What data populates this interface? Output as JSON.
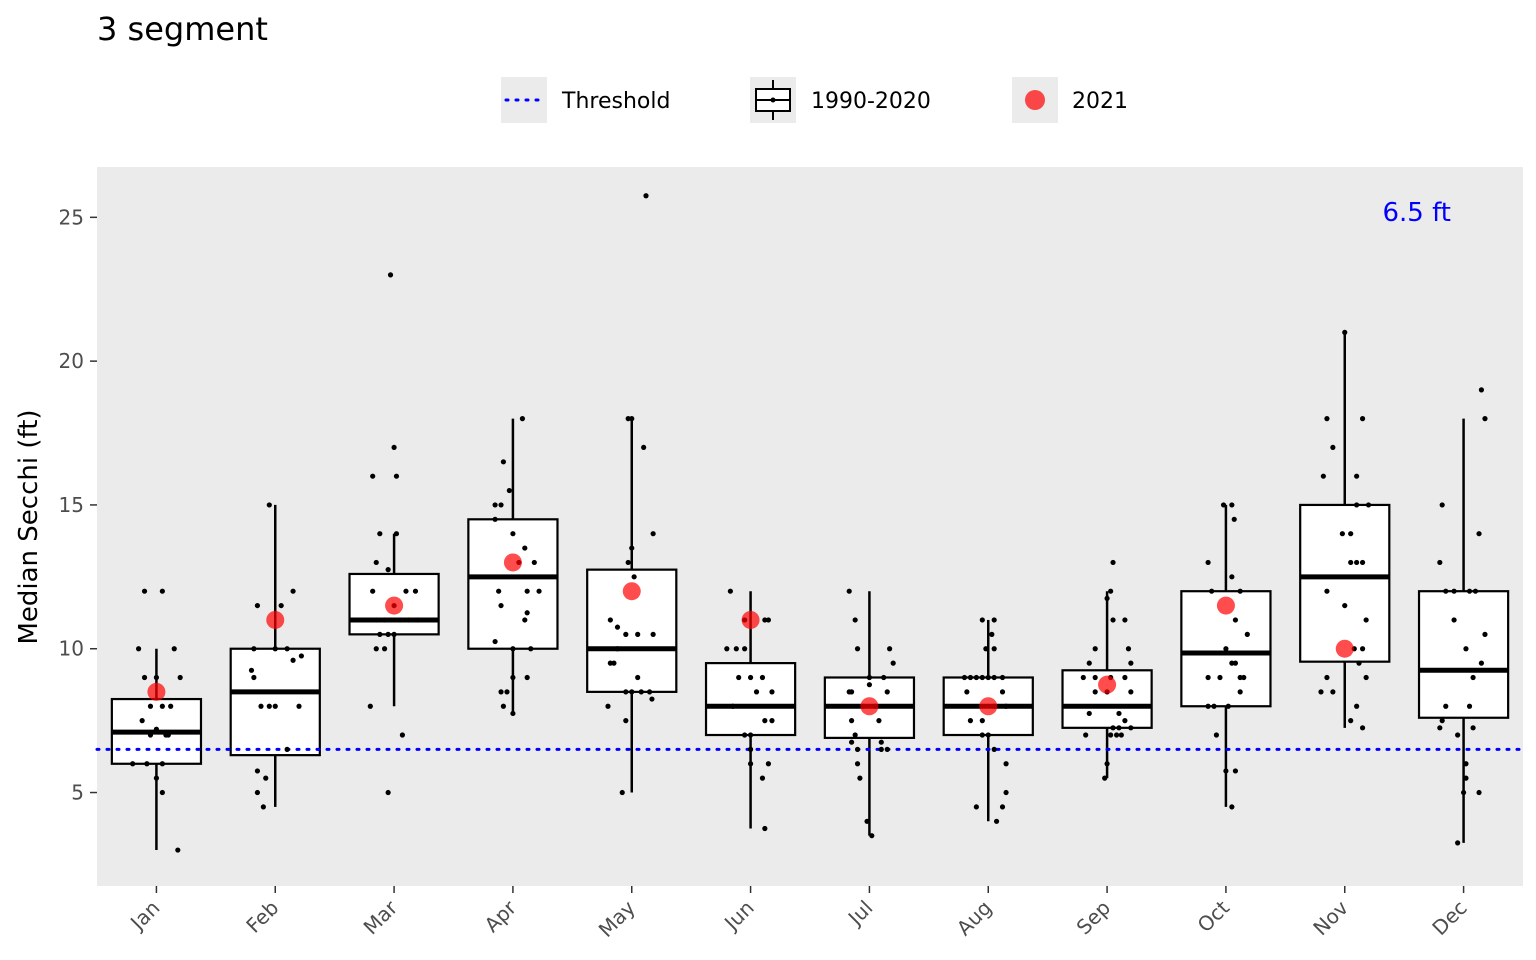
{
  "chart_data": {
    "type": "box",
    "title": "3 segment",
    "ylabel": "Median Secchi (ft)",
    "xlabel": "",
    "ylim": [
      1.75,
      26.75
    ],
    "yticks": [
      5,
      10,
      15,
      20,
      25
    ],
    "grid": false,
    "panel_background": "#ebebeb",
    "legend_position": "top",
    "legend": [
      {
        "key": "threshold",
        "label": "Threshold"
      },
      {
        "key": "box",
        "label": "1990-2020"
      },
      {
        "key": "current",
        "label": "2021"
      }
    ],
    "threshold": {
      "value": 6.5,
      "label": "6.5 ft",
      "color": "#0000ff"
    },
    "current_color": "#ff0000",
    "categories": [
      "Jan",
      "Feb",
      "Mar",
      "Apr",
      "May",
      "Jun",
      "Jul",
      "Aug",
      "Sep",
      "Oct",
      "Nov",
      "Dec"
    ],
    "boxes": [
      {
        "whisker_low": 3.0,
        "q1": 6.0,
        "median": 7.1,
        "q3": 8.25,
        "whisker_high": 10.0
      },
      {
        "whisker_low": 4.5,
        "q1": 6.3,
        "median": 8.5,
        "q3": 10.0,
        "whisker_high": 15.0
      },
      {
        "whisker_low": 8.0,
        "q1": 10.5,
        "median": 11.0,
        "q3": 12.6,
        "whisker_high": 14.0
      },
      {
        "whisker_low": 7.75,
        "q1": 10.0,
        "median": 12.5,
        "q3": 14.5,
        "whisker_high": 18.0
      },
      {
        "whisker_low": 5.0,
        "q1": 8.5,
        "median": 10.0,
        "q3": 12.75,
        "whisker_high": 18.0
      },
      {
        "whisker_low": 3.75,
        "q1": 7.0,
        "median": 8.0,
        "q3": 9.5,
        "whisker_high": 12.0
      },
      {
        "whisker_low": 3.5,
        "q1": 6.9,
        "median": 8.0,
        "q3": 9.0,
        "whisker_high": 12.0
      },
      {
        "whisker_low": 4.0,
        "q1": 7.0,
        "median": 8.0,
        "q3": 9.0,
        "whisker_high": 11.0
      },
      {
        "whisker_low": 5.5,
        "q1": 7.25,
        "median": 8.0,
        "q3": 9.25,
        "whisker_high": 12.0
      },
      {
        "whisker_low": 4.5,
        "q1": 8.0,
        "median": 9.85,
        "q3": 12.0,
        "whisker_high": 15.0
      },
      {
        "whisker_low": 7.25,
        "q1": 9.55,
        "median": 12.5,
        "q3": 15.0,
        "whisker_high": 21.0
      },
      {
        "whisker_low": 3.25,
        "q1": 7.6,
        "median": 9.25,
        "q3": 12.0,
        "whisker_high": 18.0
      }
    ],
    "current_values": [
      8.5,
      11.0,
      11.5,
      13.0,
      12.0,
      11.0,
      8.0,
      8.0,
      8.75,
      11.5,
      10.0,
      null
    ],
    "points": [
      [
        [
          -0.1,
          12
        ],
        [
          0.05,
          12
        ],
        [
          -0.15,
          10
        ],
        [
          0.15,
          10
        ],
        [
          -0.1,
          9
        ],
        [
          0,
          9
        ],
        [
          0.2,
          9
        ],
        [
          -0.05,
          8
        ],
        [
          0.05,
          8
        ],
        [
          0.12,
          8
        ],
        [
          -0.12,
          7.5
        ],
        [
          0,
          7.2
        ],
        [
          0.08,
          7
        ],
        [
          -0.05,
          7
        ],
        [
          0.1,
          7
        ],
        [
          -0.2,
          6
        ],
        [
          -0.08,
          6
        ],
        [
          0.05,
          6
        ],
        [
          0,
          5.5
        ],
        [
          0.05,
          5
        ],
        [
          0.18,
          3
        ]
      ],
      [
        [
          -0.05,
          15
        ],
        [
          0.15,
          12
        ],
        [
          -0.15,
          11.5
        ],
        [
          0.05,
          11.5
        ],
        [
          -0.18,
          10
        ],
        [
          0,
          10
        ],
        [
          0.1,
          10
        ],
        [
          0.22,
          9.75
        ],
        [
          0.15,
          9.6
        ],
        [
          -0.2,
          9.25
        ],
        [
          -0.18,
          9
        ],
        [
          -0.12,
          8
        ],
        [
          0,
          8
        ],
        [
          -0.05,
          8
        ],
        [
          0.2,
          8
        ],
        [
          0.1,
          6.5
        ],
        [
          -0.15,
          5.75
        ],
        [
          -0.08,
          5.5
        ],
        [
          -0.15,
          5
        ],
        [
          -0.1,
          4.5
        ]
      ],
      [
        [
          -0.03,
          23
        ],
        [
          0,
          17
        ],
        [
          -0.18,
          16
        ],
        [
          0.02,
          16
        ],
        [
          -0.15,
          13
        ],
        [
          -0.12,
          14
        ],
        [
          0.02,
          14
        ],
        [
          -0.05,
          12.75
        ],
        [
          -0.18,
          12
        ],
        [
          0.1,
          12
        ],
        [
          0.18,
          12
        ],
        [
          0,
          11.5
        ],
        [
          -0.15,
          11
        ],
        [
          -0.08,
          11
        ],
        [
          0.05,
          11
        ],
        [
          0.12,
          11
        ],
        [
          0.2,
          11
        ],
        [
          -0.12,
          10.5
        ],
        [
          -0.05,
          10.5
        ],
        [
          0,
          10.5
        ],
        [
          -0.15,
          10
        ],
        [
          -0.08,
          10
        ],
        [
          -0.2,
          8
        ],
        [
          0.07,
          7
        ],
        [
          -0.05,
          5
        ]
      ],
      [
        [
          0.08,
          18
        ],
        [
          -0.08,
          16.5
        ],
        [
          -0.03,
          15.5
        ],
        [
          -0.15,
          15
        ],
        [
          -0.1,
          15
        ],
        [
          -0.15,
          14.5
        ],
        [
          0,
          14
        ],
        [
          0.1,
          13.5
        ],
        [
          0.05,
          13
        ],
        [
          0.18,
          13
        ],
        [
          0.22,
          12
        ],
        [
          0.12,
          12
        ],
        [
          -0.12,
          12
        ],
        [
          0.12,
          11.25
        ],
        [
          -0.1,
          11.5
        ],
        [
          0.1,
          11
        ],
        [
          -0.15,
          10.25
        ],
        [
          0,
          10
        ],
        [
          0.15,
          10
        ],
        [
          -0.1,
          8.5
        ],
        [
          -0.05,
          8.5
        ],
        [
          0,
          9
        ],
        [
          0.12,
          9
        ],
        [
          -0.08,
          8
        ],
        [
          0,
          7.75
        ]
      ],
      [
        [
          0.12,
          25.75
        ],
        [
          0,
          18
        ],
        [
          -0.03,
          18
        ],
        [
          0.1,
          17
        ],
        [
          0.18,
          14
        ],
        [
          0,
          13.5
        ],
        [
          -0.03,
          13
        ],
        [
          0.02,
          12.5
        ],
        [
          -0.18,
          11
        ],
        [
          -0.12,
          10.75
        ],
        [
          -0.05,
          10.5
        ],
        [
          0.05,
          10.5
        ],
        [
          0.18,
          10.5
        ],
        [
          -0.18,
          9.5
        ],
        [
          -0.15,
          9.5
        ],
        [
          -0.12,
          10
        ],
        [
          0.05,
          9
        ],
        [
          -0.05,
          8.5
        ],
        [
          0,
          8.5
        ],
        [
          0.08,
          8.5
        ],
        [
          0.15,
          8.5
        ],
        [
          0.17,
          8.25
        ],
        [
          -0.2,
          8
        ],
        [
          -0.05,
          7.5
        ],
        [
          -0.08,
          5
        ]
      ],
      [
        [
          -0.17,
          12
        ],
        [
          0.15,
          11
        ],
        [
          -0.05,
          11
        ],
        [
          0.12,
          11
        ],
        [
          -0.2,
          10
        ],
        [
          -0.12,
          10
        ],
        [
          -0.05,
          10
        ],
        [
          -0.1,
          9
        ],
        [
          0,
          9
        ],
        [
          0.1,
          9
        ],
        [
          0.18,
          8.5
        ],
        [
          0.05,
          8.5
        ],
        [
          -0.15,
          8
        ],
        [
          0.12,
          7.5
        ],
        [
          0.18,
          7.5
        ],
        [
          -0.05,
          7
        ],
        [
          0,
          7
        ],
        [
          0,
          6.5
        ],
        [
          0,
          6
        ],
        [
          0.15,
          6
        ],
        [
          0.1,
          5.5
        ],
        [
          0.12,
          3.75
        ]
      ],
      [
        [
          -0.17,
          12
        ],
        [
          -0.12,
          11
        ],
        [
          -0.1,
          10
        ],
        [
          0.17,
          10
        ],
        [
          0.12,
          9
        ],
        [
          0.2,
          9.5
        ],
        [
          0,
          9
        ],
        [
          0,
          8.75
        ],
        [
          -0.17,
          8.5
        ],
        [
          -0.15,
          8.5
        ],
        [
          0.15,
          8.5
        ],
        [
          -0.05,
          8
        ],
        [
          0.05,
          8
        ],
        [
          -0.15,
          7.5
        ],
        [
          0.08,
          7.5
        ],
        [
          -0.12,
          7
        ],
        [
          0.1,
          6.75
        ],
        [
          -0.15,
          6.75
        ],
        [
          -0.1,
          6.5
        ],
        [
          0.1,
          6.5
        ],
        [
          0.15,
          6.5
        ],
        [
          -0.1,
          6
        ],
        [
          -0.08,
          5.5
        ],
        [
          -0.02,
          4
        ],
        [
          0.02,
          3.5
        ]
      ],
      [
        [
          -0.05,
          11
        ],
        [
          0.05,
          11
        ],
        [
          0.03,
          10.5
        ],
        [
          -0.02,
          10
        ],
        [
          0.05,
          10
        ],
        [
          -0.2,
          9
        ],
        [
          -0.15,
          9
        ],
        [
          -0.1,
          9
        ],
        [
          -0.05,
          9
        ],
        [
          0,
          9
        ],
        [
          0.05,
          9
        ],
        [
          0.12,
          9
        ],
        [
          -0.18,
          8.5
        ],
        [
          0.12,
          8.5
        ],
        [
          0.05,
          8
        ],
        [
          0.15,
          8
        ],
        [
          -0.05,
          7.5
        ],
        [
          -0.15,
          7.5
        ],
        [
          0,
          7
        ],
        [
          0.05,
          6.5
        ],
        [
          -0.05,
          7
        ],
        [
          0.15,
          6
        ],
        [
          -0.1,
          4.5
        ],
        [
          0.15,
          5
        ],
        [
          0.12,
          4.5
        ],
        [
          0.07,
          4
        ]
      ],
      [
        [
          0.05,
          13
        ],
        [
          0.03,
          12
        ],
        [
          0,
          11.75
        ],
        [
          -0.1,
          10
        ],
        [
          0.05,
          11
        ],
        [
          0.15,
          11
        ],
        [
          0.18,
          10
        ],
        [
          0.2,
          9.5
        ],
        [
          -0.15,
          9.5
        ],
        [
          0.15,
          9
        ],
        [
          -0.1,
          9
        ],
        [
          -0.2,
          9
        ],
        [
          0.03,
          9
        ],
        [
          0.2,
          8.5
        ],
        [
          -0.1,
          8.5
        ],
        [
          0,
          8.5
        ],
        [
          -0.15,
          7.75
        ],
        [
          0.1,
          7.75
        ],
        [
          0.15,
          7.5
        ],
        [
          0.2,
          7.25
        ],
        [
          0.1,
          7.25
        ],
        [
          0.12,
          7
        ],
        [
          0.05,
          7.25
        ],
        [
          -0.18,
          7
        ],
        [
          0.03,
          7
        ],
        [
          0.08,
          7
        ],
        [
          0,
          6
        ],
        [
          -0.02,
          5.5
        ]
      ],
      [
        [
          -0.02,
          15
        ],
        [
          0.05,
          15
        ],
        [
          0.07,
          14.5
        ],
        [
          -0.15,
          13
        ],
        [
          0.05,
          12.5
        ],
        [
          0.12,
          12
        ],
        [
          -0.12,
          12
        ],
        [
          0.08,
          11
        ],
        [
          0.18,
          10.5
        ],
        [
          0,
          10
        ],
        [
          0.05,
          9.5
        ],
        [
          0.08,
          9.5
        ],
        [
          -0.15,
          9
        ],
        [
          -0.05,
          9
        ],
        [
          0.12,
          9
        ],
        [
          0.15,
          9
        ],
        [
          0.12,
          8.5
        ],
        [
          -0.1,
          8
        ],
        [
          -0.15,
          8
        ],
        [
          0.02,
          8
        ],
        [
          -0.08,
          7
        ],
        [
          0.08,
          5.75
        ],
        [
          0,
          5.75
        ],
        [
          0.05,
          4.5
        ]
      ],
      [
        [
          0,
          21
        ],
        [
          -0.15,
          18
        ],
        [
          0.15,
          18
        ],
        [
          -0.1,
          17
        ],
        [
          0.1,
          16
        ],
        [
          -0.18,
          16
        ],
        [
          0.1,
          15
        ],
        [
          0.2,
          15
        ],
        [
          -0.02,
          14
        ],
        [
          0.05,
          14
        ],
        [
          -0.15,
          12
        ],
        [
          0.1,
          13
        ],
        [
          0.15,
          13
        ],
        [
          0.05,
          13
        ],
        [
          0.18,
          11
        ],
        [
          0.15,
          10
        ],
        [
          0.08,
          10
        ],
        [
          0,
          11.5
        ],
        [
          0.12,
          9.5
        ],
        [
          -0.15,
          9
        ],
        [
          0.18,
          9
        ],
        [
          -0.2,
          8.5
        ],
        [
          -0.1,
          8.5
        ],
        [
          0.1,
          8
        ],
        [
          0.05,
          7.5
        ],
        [
          0.15,
          7.25
        ]
      ],
      [
        [
          0.15,
          19
        ],
        [
          0.18,
          18
        ],
        [
          -0.18,
          15
        ],
        [
          0.13,
          14
        ],
        [
          -0.2,
          13
        ],
        [
          0.1,
          12
        ],
        [
          -0.15,
          12
        ],
        [
          -0.08,
          12
        ],
        [
          0.05,
          12
        ],
        [
          0.18,
          10.5
        ],
        [
          -0.08,
          11
        ],
        [
          0.15,
          9.5
        ],
        [
          0.02,
          10
        ],
        [
          0.08,
          9
        ],
        [
          -0.15,
          8
        ],
        [
          0.05,
          8
        ],
        [
          -0.18,
          7.5
        ],
        [
          -0.2,
          7.25
        ],
        [
          -0.05,
          7
        ],
        [
          0.08,
          7.25
        ],
        [
          0.02,
          6
        ],
        [
          0.02,
          5.5
        ],
        [
          0,
          5
        ],
        [
          0.13,
          5
        ],
        [
          -0.05,
          3.25
        ]
      ]
    ]
  }
}
